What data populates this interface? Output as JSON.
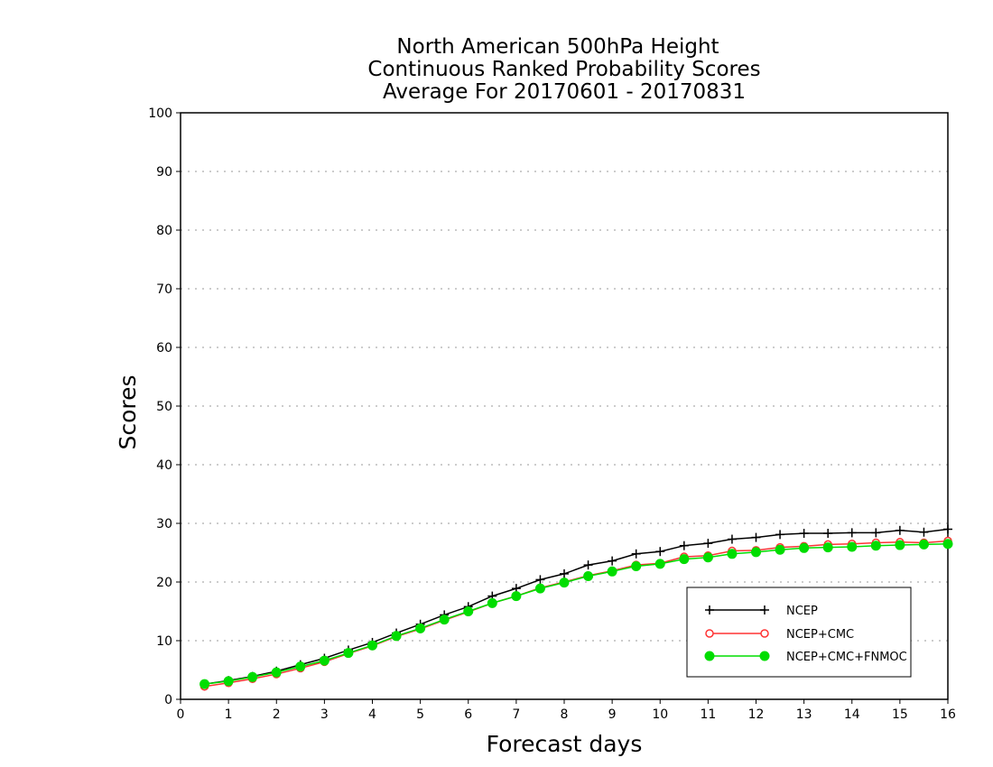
{
  "chart_data": {
    "type": "line",
    "title_lines": [
      "North American 500hPa Height",
      "Continuous Ranked Probability Scores",
      "Average For 20170601 - 20170831"
    ],
    "xlabel": "Forecast days",
    "ylabel": "Scores",
    "xlim": [
      0,
      16
    ],
    "ylim": [
      0,
      100
    ],
    "xticks": [
      0,
      1,
      2,
      3,
      4,
      5,
      6,
      7,
      8,
      9,
      10,
      11,
      12,
      13,
      14,
      15,
      16
    ],
    "yticks": [
      0,
      10,
      20,
      30,
      40,
      50,
      60,
      70,
      80,
      90,
      100
    ],
    "grid": "horizontal dotted",
    "legend_position": "bottom-right",
    "x": [
      0.5,
      1,
      1.5,
      2,
      2.5,
      3,
      3.5,
      4,
      4.5,
      5,
      5.5,
      6,
      6.5,
      7,
      7.5,
      8,
      8.5,
      9,
      9.5,
      10,
      10.5,
      11,
      11.5,
      12,
      12.5,
      13,
      13.5,
      14,
      14.5,
      15,
      15.5,
      16
    ],
    "series": [
      {
        "name": "NCEP",
        "color": "#000000",
        "marker": "plus",
        "values": [
          2.6,
          3.2,
          3.9,
          4.8,
          5.9,
          7.0,
          8.4,
          9.7,
          11.3,
          12.8,
          14.4,
          15.8,
          17.6,
          18.9,
          20.4,
          21.4,
          22.9,
          23.6,
          24.8,
          25.2,
          26.2,
          26.6,
          27.3,
          27.6,
          28.1,
          28.3,
          28.3,
          28.4,
          28.4,
          28.8,
          28.5,
          29.0
        ]
      },
      {
        "name": "NCEP+CMC",
        "color": "#ff3333",
        "marker": "open-circle",
        "values": [
          2.2,
          2.8,
          3.5,
          4.3,
          5.3,
          6.4,
          7.8,
          9.1,
          10.7,
          12.0,
          13.5,
          14.9,
          16.4,
          17.6,
          19.0,
          20.0,
          21.1,
          21.9,
          22.9,
          23.2,
          24.3,
          24.5,
          25.3,
          25.4,
          25.9,
          26.1,
          26.4,
          26.5,
          26.7,
          26.8,
          26.7,
          27.0
        ]
      },
      {
        "name": "NCEP+CMC+FNMOC",
        "color": "#00dd00",
        "marker": "filled-circle",
        "values": [
          2.6,
          3.1,
          3.8,
          4.6,
          5.6,
          6.6,
          7.9,
          9.2,
          10.8,
          12.1,
          13.6,
          15.0,
          16.4,
          17.6,
          18.9,
          19.9,
          21.0,
          21.8,
          22.7,
          23.1,
          23.9,
          24.2,
          24.8,
          25.1,
          25.5,
          25.8,
          25.9,
          26.0,
          26.2,
          26.3,
          26.4,
          26.5
        ]
      }
    ]
  }
}
